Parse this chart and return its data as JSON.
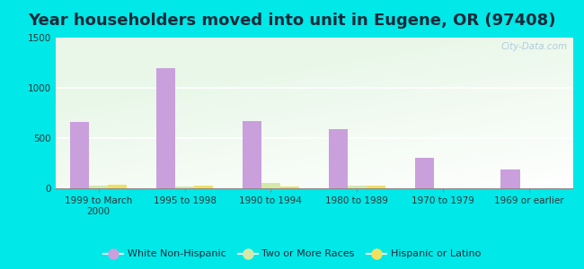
{
  "title": "Year householders moved into unit in Eugene, OR (97408)",
  "categories": [
    "1999 to March\n2000",
    "1995 to 1998",
    "1990 to 1994",
    "1980 to 1989",
    "1970 to 1979",
    "1969 or earlier"
  ],
  "series": [
    {
      "name": "White Non-Hispanic",
      "color": "#c9a0dc",
      "values": [
        660,
        1200,
        670,
        590,
        300,
        185
      ]
    },
    {
      "name": "Two or More Races",
      "color": "#d4e8a8",
      "values": [
        25,
        20,
        50,
        30,
        0,
        0
      ]
    },
    {
      "name": "Hispanic or Latino",
      "color": "#f0e060",
      "values": [
        35,
        30,
        15,
        30,
        0,
        0
      ]
    }
  ],
  "ylim": [
    0,
    1500
  ],
  "yticks": [
    0,
    500,
    1000,
    1500
  ],
  "bar_width": 0.22,
  "outer_background": "#00e8e8",
  "watermark": "City-Data.com",
  "title_fontsize": 13,
  "title_color": "#1a2a3a"
}
